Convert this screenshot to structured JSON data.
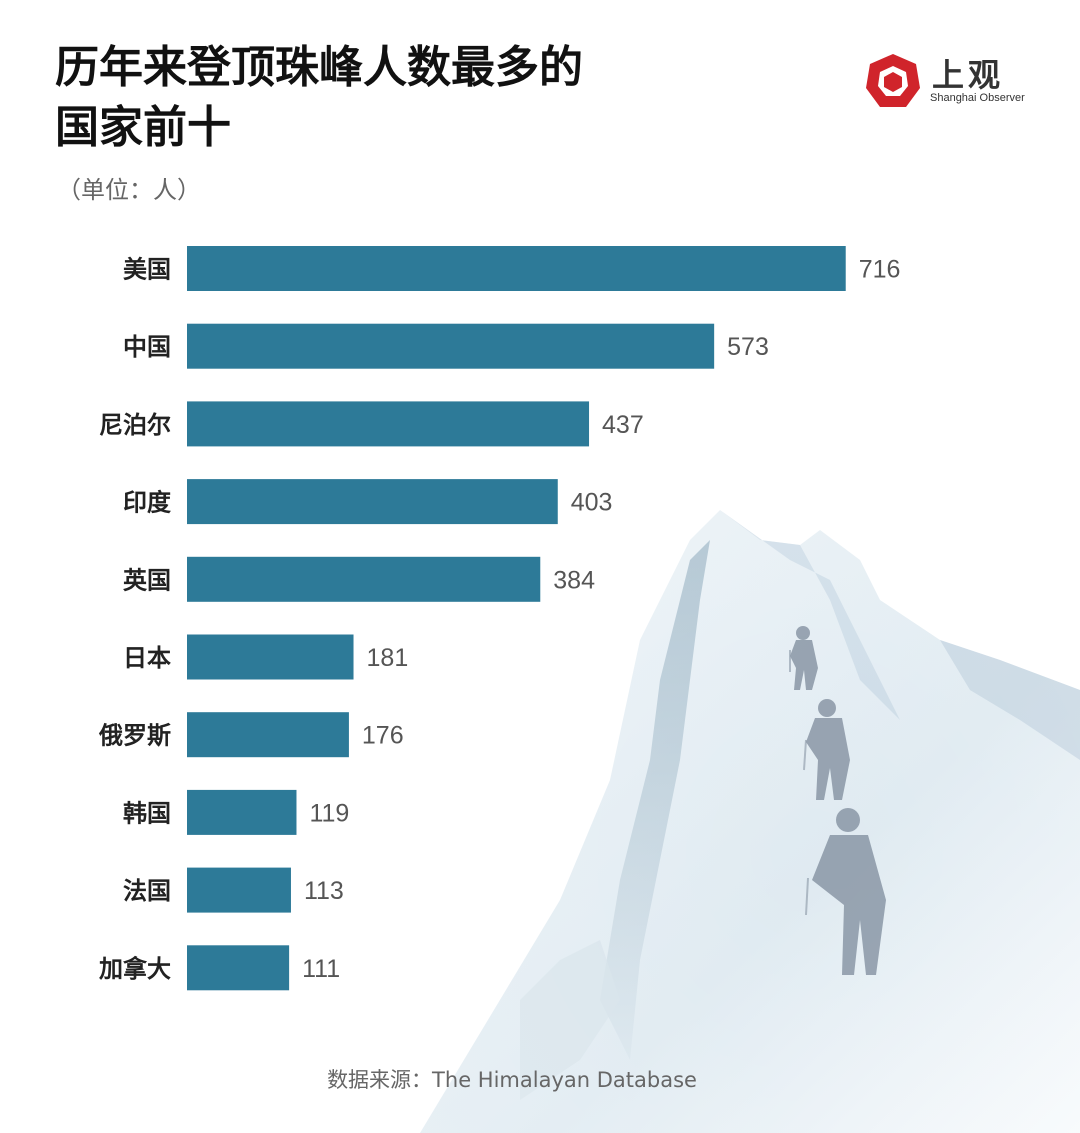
{
  "title_line1": "历年来登顶珠峰人数最多的",
  "title_line2": "国家前十",
  "unit": "（单位：人）",
  "logo": {
    "name_cn": "上观",
    "name_en": "Shanghai Observer",
    "color": "#d0242b"
  },
  "source": "数据来源：The Himalayan Database",
  "colors": {
    "bar": "#2d7a98"
  },
  "chart_data": {
    "type": "bar",
    "orientation": "horizontal",
    "title": "历年来登顶珠峰人数最多的国家前十",
    "unit": "人",
    "categories": [
      "美国",
      "中国",
      "尼泊尔",
      "印度",
      "英国",
      "日本",
      "俄罗斯",
      "韩国",
      "法国",
      "加拿大"
    ],
    "values": [
      716,
      573,
      437,
      403,
      384,
      181,
      176,
      119,
      113,
      111
    ],
    "xlabel": "",
    "ylabel": "",
    "grid": false,
    "data_labels": true
  }
}
